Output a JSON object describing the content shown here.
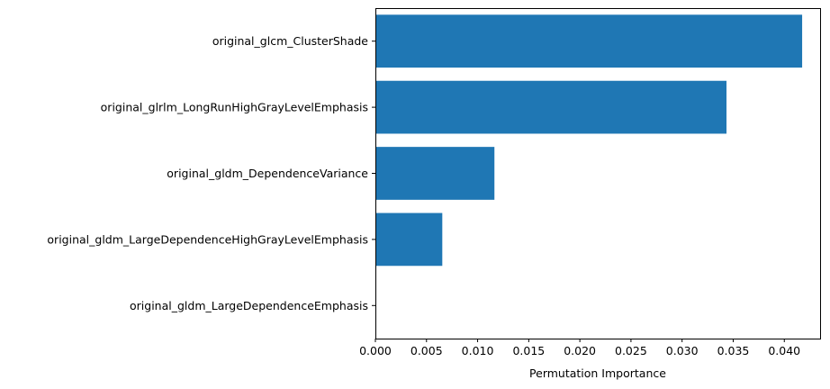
{
  "chart_data": {
    "type": "bar",
    "orientation": "horizontal",
    "categories": [
      "original_glcm_ClusterShade",
      "original_glrlm_LongRunHighGrayLevelEmphasis",
      "original_gldm_DependenceVariance",
      "original_gldm_LargeDependenceHighGrayLevelEmphasis",
      "original_gldm_LargeDependenceEmphasis"
    ],
    "values": [
      0.0417,
      0.0343,
      0.0116,
      0.0065,
      0.0
    ],
    "title": "",
    "xlabel": "Permutation Importance",
    "ylabel": "",
    "xlim": [
      0,
      0.0435
    ],
    "xticks": [
      "0.000",
      "0.005",
      "0.010",
      "0.015",
      "0.020",
      "0.025",
      "0.030",
      "0.035",
      "0.040"
    ],
    "grid": false,
    "bar_color": "#1f77b4"
  }
}
